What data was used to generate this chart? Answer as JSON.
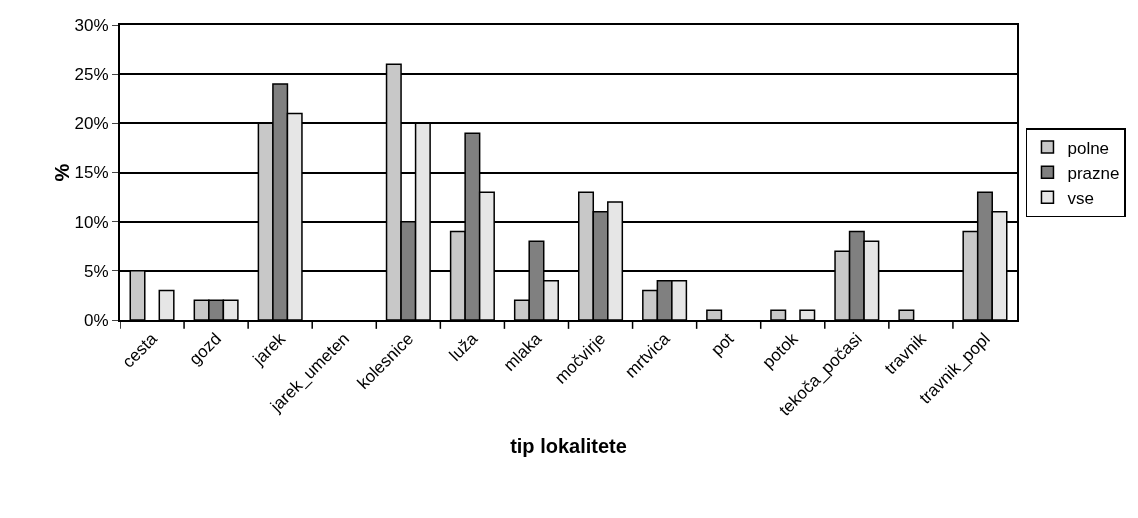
{
  "chart_data": {
    "type": "bar",
    "xlabel": "tip lokalitete",
    "ylabel": "%",
    "categories": [
      "cesta",
      "gozd",
      "jarek",
      "jarek_umeten",
      "kolesnice",
      "luža",
      "mlaka",
      "močvirje",
      "mrtvica",
      "pot",
      "potok",
      "tekoča_počasi",
      "travnik",
      "travnik_popl"
    ],
    "series": [
      {
        "name": "polne",
        "color": "#c8c8c8",
        "values": [
          5,
          2,
          20,
          null,
          26,
          9,
          2,
          13,
          3,
          1,
          1,
          7,
          1,
          9
        ]
      },
      {
        "name": "prazne",
        "color": "#808080",
        "values": [
          null,
          2,
          24,
          null,
          10,
          19,
          8,
          11,
          4,
          null,
          null,
          9,
          null,
          13
        ]
      },
      {
        "name": "vse",
        "color": "#e6e6e6",
        "values": [
          3,
          2,
          21,
          null,
          20,
          13,
          4,
          12,
          4,
          null,
          1,
          8,
          null,
          11
        ]
      }
    ],
    "ylim": [
      0,
      30
    ],
    "yticks": [
      {
        "value": 0,
        "label": "0%"
      },
      {
        "value": 5,
        "label": "5%"
      },
      {
        "value": 10,
        "label": "10%"
      },
      {
        "value": 15,
        "label": "15%"
      },
      {
        "value": 20,
        "label": "20%"
      },
      {
        "value": 25,
        "label": "25%"
      },
      {
        "value": 30,
        "label": "30%"
      }
    ],
    "grid": "y",
    "legend": "right"
  }
}
